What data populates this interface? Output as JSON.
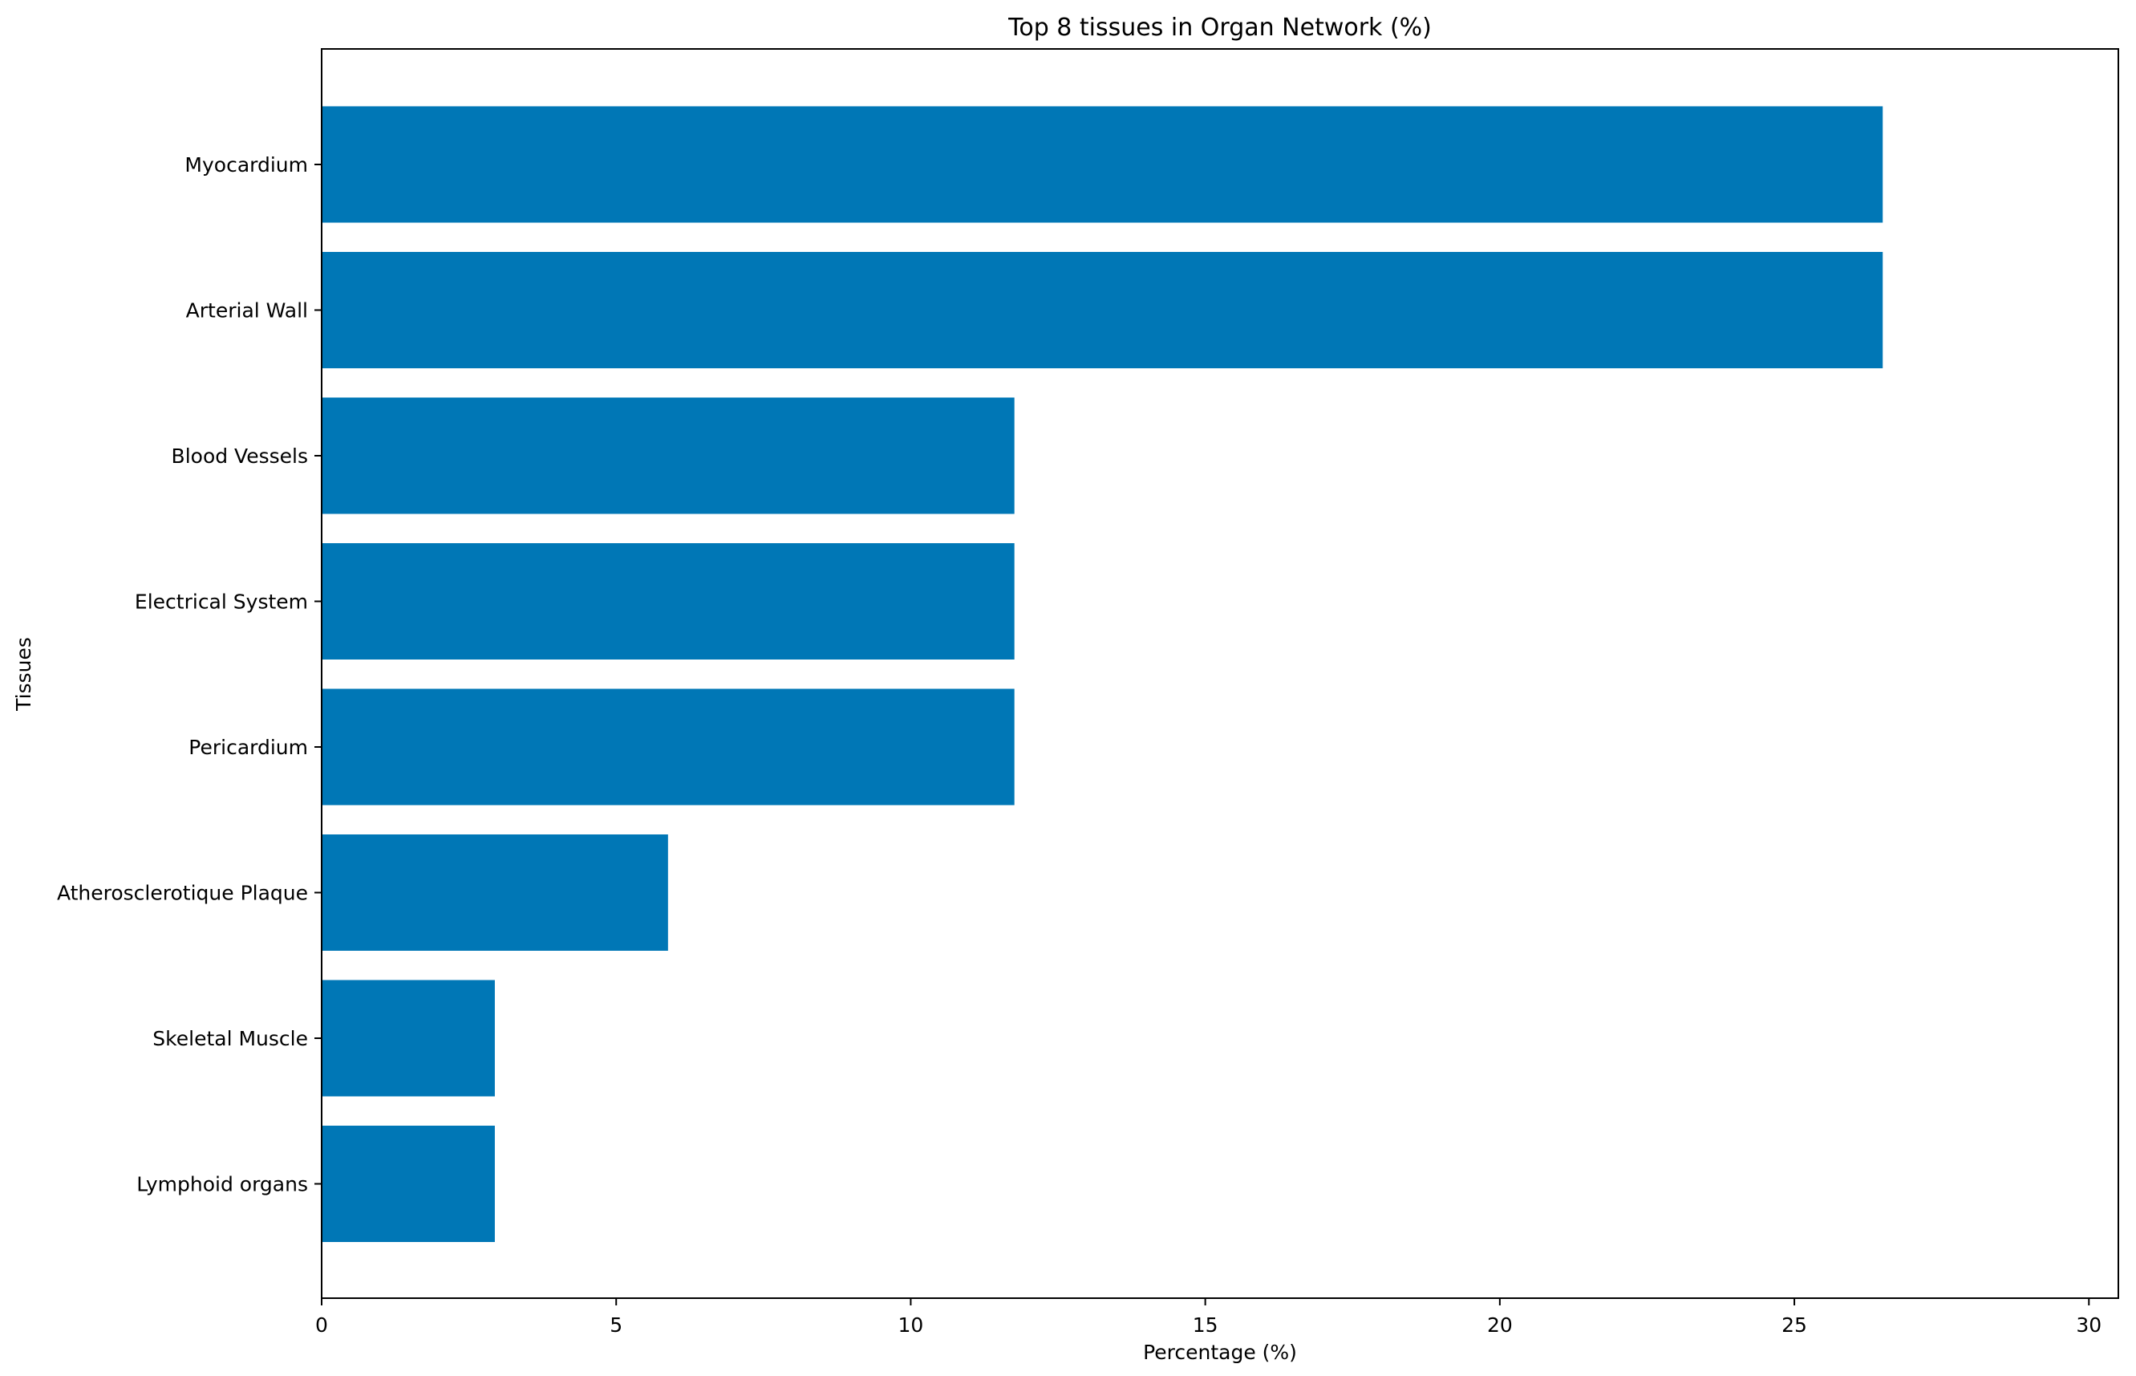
{
  "chart_data": {
    "type": "bar",
    "orientation": "horizontal",
    "title": "Top 8 tissues in Organ Network (%)",
    "xlabel": "Percentage (%)",
    "ylabel": "Tissues",
    "categories": [
      "Myocardium",
      "Arterial Wall",
      "Blood Vessels",
      "Electrical System",
      "Pericardium",
      "Atherosclerotique Plaque",
      "Skeletal Muscle",
      "Lymphoid organs"
    ],
    "values": [
      26.5,
      26.5,
      11.76,
      11.76,
      11.76,
      5.88,
      2.94,
      2.94
    ],
    "xlim": [
      0,
      30.5
    ],
    "xticks": [
      "0",
      "5",
      "10",
      "15",
      "20",
      "25",
      "30"
    ],
    "xtick_values": [
      0,
      5,
      10,
      15,
      20,
      25,
      30
    ],
    "bar_color": "#0077b6",
    "grid": false,
    "legend": "none"
  }
}
